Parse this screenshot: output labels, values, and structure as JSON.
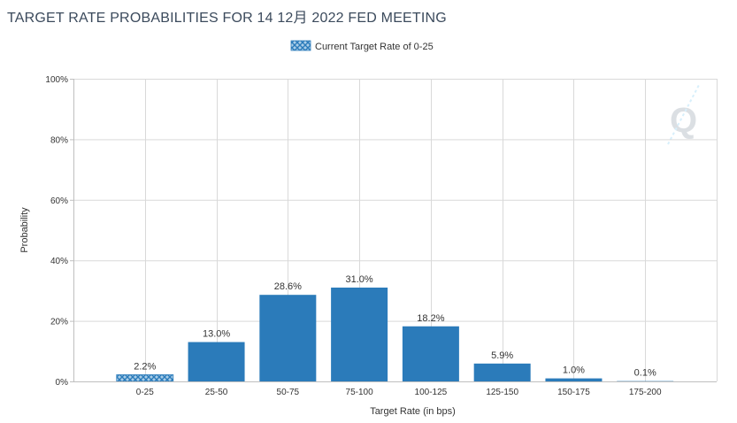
{
  "title": "TARGET RATE PROBABILITIES FOR 14 12月 2022 FED MEETING",
  "legend": {
    "label": "Current Target Rate of 0-25"
  },
  "watermark": "Q",
  "colors": {
    "bar": "#2b7bba",
    "current_pattern_bg": "#a9cde8",
    "grid": "#d9d9d9",
    "axis": "#bfbfbf"
  },
  "chart_data": {
    "type": "bar",
    "categories": [
      "0-25",
      "25-50",
      "50-75",
      "75-100",
      "100-125",
      "125-150",
      "150-175",
      "175-200"
    ],
    "values": [
      2.2,
      13.0,
      28.6,
      31.0,
      18.2,
      5.9,
      1.0,
      0.1
    ],
    "data_labels": [
      "2.2%",
      "13.0%",
      "28.6%",
      "31.0%",
      "18.2%",
      "5.9%",
      "1.0%",
      "0.1%"
    ],
    "highlighted_category": "0-25",
    "xlabel": "Target Rate (in bps)",
    "ylabel": "Probability",
    "ylim": [
      0,
      100
    ],
    "yticks": [
      0,
      20,
      40,
      60,
      80,
      100
    ],
    "ytick_labels": [
      "0%",
      "20%",
      "40%",
      "60%",
      "80%",
      "100%"
    ],
    "grid": true,
    "legend_position": "top-center"
  }
}
